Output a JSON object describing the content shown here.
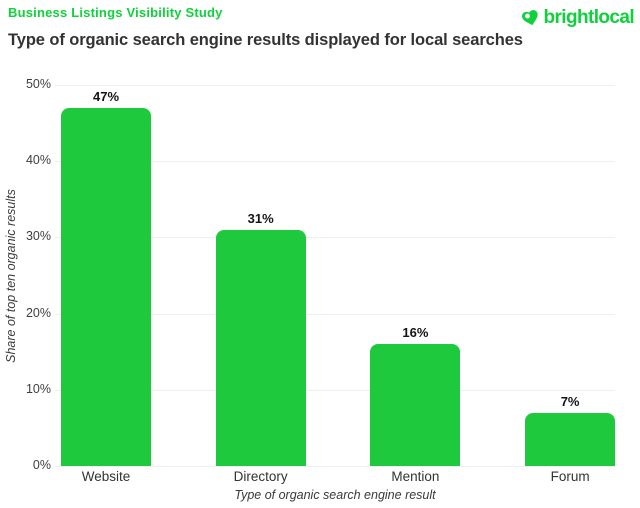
{
  "header": {
    "kicker": "Business Listings Visibility Study",
    "title": "Type of organic search engine results displayed for local searches",
    "logo_text": "brightlocal"
  },
  "colors": {
    "brand_green": "#0fd13c",
    "bar_green": "#1fc93e",
    "title_text": "#333333",
    "axis_text": "#3e3e3e",
    "gridline": "#efefef"
  },
  "chart_data": {
    "type": "bar",
    "categories": [
      "Website",
      "Directory",
      "Mention",
      "Forum"
    ],
    "values": [
      47,
      31,
      16,
      7
    ],
    "value_labels": [
      "47%",
      "31%",
      "16%",
      "7%"
    ],
    "title": "Type of organic search engine results displayed for local searches",
    "xlabel": "Type of organic search engine result",
    "ylabel": "Share of top ten organic results",
    "ylim": [
      0,
      50
    ],
    "yticks": [
      "0%",
      "10%",
      "20%",
      "30%",
      "40%",
      "50%"
    ],
    "grid": true,
    "legend": false,
    "bar_color": "#1fc93e"
  }
}
